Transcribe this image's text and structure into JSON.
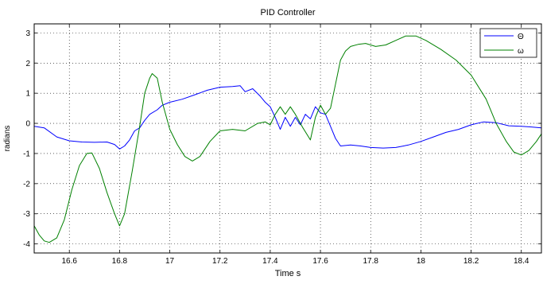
{
  "chart_data": {
    "type": "line",
    "title": "PID Controller",
    "xlabel": "Time s",
    "ylabel": "radians",
    "xlim": [
      16.46,
      18.48
    ],
    "ylim": [
      -4.3,
      3.3
    ],
    "x_ticks": [
      16.6,
      16.8,
      17,
      17.2,
      17.4,
      17.6,
      17.8,
      18,
      18.2,
      18.4
    ],
    "x_tick_labels": [
      "16.6",
      "16.8",
      "17",
      "17.2",
      "17.4",
      "17.6",
      "17.8",
      "18",
      "18.2",
      "18.4"
    ],
    "y_ticks": [
      -4,
      -3,
      -2,
      -1,
      0,
      1,
      2,
      3
    ],
    "y_tick_labels": [
      "-4",
      "-3",
      "-2",
      "-1",
      "0",
      "1",
      "2",
      "3"
    ],
    "grid": true,
    "legend_position": "top-right",
    "series": [
      {
        "name": "Θ",
        "color": "#0000ff",
        "points": [
          [
            16.46,
            -0.1
          ],
          [
            16.5,
            -0.15
          ],
          [
            16.55,
            -0.45
          ],
          [
            16.6,
            -0.58
          ],
          [
            16.65,
            -0.62
          ],
          [
            16.7,
            -0.63
          ],
          [
            16.75,
            -0.62
          ],
          [
            16.78,
            -0.7
          ],
          [
            16.8,
            -0.85
          ],
          [
            16.82,
            -0.75
          ],
          [
            16.84,
            -0.55
          ],
          [
            16.86,
            -0.25
          ],
          [
            16.88,
            -0.15
          ],
          [
            16.9,
            0.1
          ],
          [
            16.92,
            0.3
          ],
          [
            16.95,
            0.45
          ],
          [
            16.97,
            0.6
          ],
          [
            17.0,
            0.7
          ],
          [
            17.05,
            0.8
          ],
          [
            17.1,
            0.95
          ],
          [
            17.15,
            1.1
          ],
          [
            17.2,
            1.2
          ],
          [
            17.25,
            1.22
          ],
          [
            17.28,
            1.25
          ],
          [
            17.3,
            1.05
          ],
          [
            17.33,
            1.15
          ],
          [
            17.36,
            0.9
          ],
          [
            17.38,
            0.7
          ],
          [
            17.4,
            0.55
          ],
          [
            17.42,
            0.2
          ],
          [
            17.44,
            -0.2
          ],
          [
            17.46,
            0.2
          ],
          [
            17.48,
            -0.1
          ],
          [
            17.5,
            0.2
          ],
          [
            17.52,
            -0.05
          ],
          [
            17.54,
            0.3
          ],
          [
            17.56,
            0.15
          ],
          [
            17.58,
            0.55
          ],
          [
            17.6,
            0.35
          ],
          [
            17.62,
            0.3
          ],
          [
            17.64,
            -0.1
          ],
          [
            17.66,
            -0.5
          ],
          [
            17.68,
            -0.75
          ],
          [
            17.72,
            -0.72
          ],
          [
            17.76,
            -0.75
          ],
          [
            17.8,
            -0.8
          ],
          [
            17.85,
            -0.82
          ],
          [
            17.9,
            -0.8
          ],
          [
            17.95,
            -0.72
          ],
          [
            18.0,
            -0.6
          ],
          [
            18.05,
            -0.45
          ],
          [
            18.1,
            -0.3
          ],
          [
            18.15,
            -0.2
          ],
          [
            18.2,
            -0.05
          ],
          [
            18.25,
            0.05
          ],
          [
            18.3,
            0.02
          ],
          [
            18.35,
            -0.08
          ],
          [
            18.4,
            -0.1
          ],
          [
            18.44,
            -0.12
          ],
          [
            18.48,
            -0.15
          ]
        ]
      },
      {
        "name": "ω",
        "color": "#008000",
        "points": [
          [
            16.46,
            -3.4
          ],
          [
            16.48,
            -3.7
          ],
          [
            16.5,
            -3.9
          ],
          [
            16.52,
            -3.95
          ],
          [
            16.55,
            -3.8
          ],
          [
            16.58,
            -3.2
          ],
          [
            16.61,
            -2.2
          ],
          [
            16.64,
            -1.4
          ],
          [
            16.67,
            -1.0
          ],
          [
            16.69,
            -0.98
          ],
          [
            16.72,
            -1.5
          ],
          [
            16.75,
            -2.3
          ],
          [
            16.78,
            -3.0
          ],
          [
            16.8,
            -3.4
          ],
          [
            16.82,
            -3.0
          ],
          [
            16.85,
            -1.6
          ],
          [
            16.88,
            -0.1
          ],
          [
            16.9,
            1.0
          ],
          [
            16.92,
            1.5
          ],
          [
            16.93,
            1.65
          ],
          [
            16.95,
            1.5
          ],
          [
            16.97,
            0.7
          ],
          [
            17.0,
            -0.2
          ],
          [
            17.03,
            -0.7
          ],
          [
            17.06,
            -1.1
          ],
          [
            17.09,
            -1.25
          ],
          [
            17.12,
            -1.1
          ],
          [
            17.16,
            -0.6
          ],
          [
            17.2,
            -0.25
          ],
          [
            17.25,
            -0.2
          ],
          [
            17.3,
            -0.25
          ],
          [
            17.35,
            0.0
          ],
          [
            17.38,
            0.05
          ],
          [
            17.4,
            -0.05
          ],
          [
            17.42,
            0.3
          ],
          [
            17.44,
            0.55
          ],
          [
            17.46,
            0.3
          ],
          [
            17.48,
            0.55
          ],
          [
            17.5,
            0.3
          ],
          [
            17.53,
            -0.15
          ],
          [
            17.56,
            -0.55
          ],
          [
            17.58,
            0.2
          ],
          [
            17.6,
            0.6
          ],
          [
            17.62,
            0.3
          ],
          [
            17.64,
            0.5
          ],
          [
            17.66,
            1.3
          ],
          [
            17.68,
            2.1
          ],
          [
            17.7,
            2.4
          ],
          [
            17.72,
            2.55
          ],
          [
            17.75,
            2.62
          ],
          [
            17.78,
            2.65
          ],
          [
            17.82,
            2.55
          ],
          [
            17.86,
            2.6
          ],
          [
            17.9,
            2.75
          ],
          [
            17.94,
            2.9
          ],
          [
            17.98,
            2.9
          ],
          [
            18.02,
            2.75
          ],
          [
            18.08,
            2.45
          ],
          [
            18.14,
            2.1
          ],
          [
            18.2,
            1.6
          ],
          [
            18.26,
            0.8
          ],
          [
            18.3,
            0.0
          ],
          [
            18.34,
            -0.6
          ],
          [
            18.37,
            -0.95
          ],
          [
            18.4,
            -1.05
          ],
          [
            18.43,
            -0.9
          ],
          [
            18.46,
            -0.6
          ],
          [
            18.48,
            -0.35
          ]
        ]
      }
    ]
  }
}
